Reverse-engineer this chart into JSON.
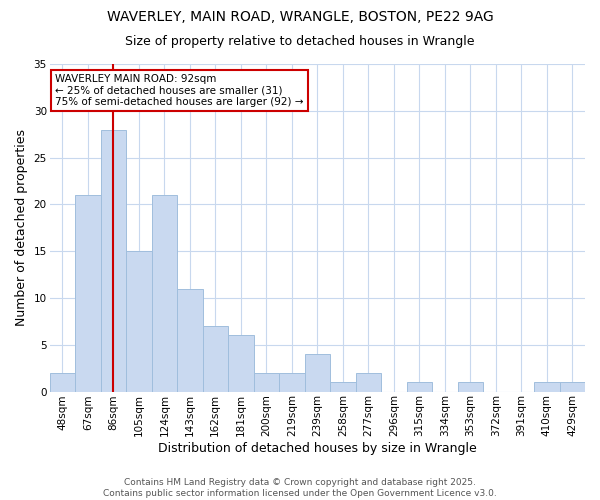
{
  "title1": "WAVERLEY, MAIN ROAD, WRANGLE, BOSTON, PE22 9AG",
  "title2": "Size of property relative to detached houses in Wrangle",
  "xlabel": "Distribution of detached houses by size in Wrangle",
  "ylabel": "Number of detached properties",
  "categories": [
    "48sqm",
    "67sqm",
    "86sqm",
    "105sqm",
    "124sqm",
    "143sqm",
    "162sqm",
    "181sqm",
    "200sqm",
    "219sqm",
    "239sqm",
    "258sqm",
    "277sqm",
    "296sqm",
    "315sqm",
    "334sqm",
    "353sqm",
    "372sqm",
    "391sqm",
    "410sqm",
    "429sqm"
  ],
  "values": [
    2,
    21,
    28,
    15,
    21,
    11,
    7,
    6,
    2,
    2,
    4,
    1,
    2,
    0,
    1,
    0,
    1,
    0,
    0,
    1,
    1
  ],
  "bar_color": "#c9d9f0",
  "bar_edge_color": "#a0bedd",
  "background_color": "#ffffff",
  "grid_color": "#c8d8ee",
  "vline_x_pos": 2.5,
  "vline_color": "#cc0000",
  "annotation_text": "WAVERLEY MAIN ROAD: 92sqm\n← 25% of detached houses are smaller (31)\n75% of semi-detached houses are larger (92) →",
  "annotation_box_color": "#ffffff",
  "annotation_box_edge_color": "#cc0000",
  "footer_text": "Contains HM Land Registry data © Crown copyright and database right 2025.\nContains public sector information licensed under the Open Government Licence v3.0.",
  "ylim": [
    0,
    35
  ],
  "yticks": [
    0,
    5,
    10,
    15,
    20,
    25,
    30,
    35
  ],
  "title1_fontsize": 10,
  "title2_fontsize": 9,
  "axis_label_fontsize": 9,
  "tick_fontsize": 7.5,
  "annotation_fontsize": 7.5,
  "footer_fontsize": 6.5
}
